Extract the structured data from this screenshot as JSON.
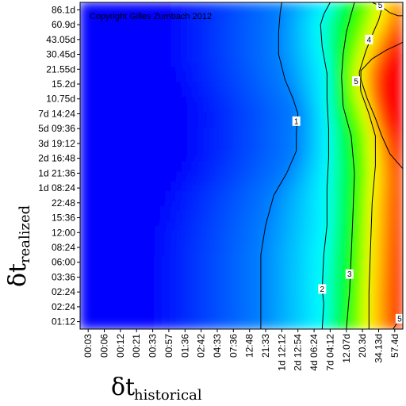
{
  "chart_data": {
    "type": "heatmap",
    "title": "",
    "copyright": "Copyright Gilles Zumbach 2012",
    "xlabel": {
      "symbol": "δt",
      "subscript": "historical"
    },
    "ylabel": {
      "symbol": "δt",
      "subscript": "realized"
    },
    "x_categories": [
      "00:03",
      "00:06",
      "00:12",
      "00:21",
      "00:33",
      "00:57",
      "01:36",
      "02:42",
      "04:33",
      "07:36",
      "12:48",
      "21:33",
      "1d 12:12",
      "2d 12:54",
      "4d 06:24",
      "7d 04:12",
      "12.07d",
      "20.3d",
      "34.13d",
      "57.4d"
    ],
    "y_categories": [
      "01:12",
      "02:24",
      "02:24",
      "03:36",
      "06:00",
      "08:24",
      "12:00",
      "15:36",
      "22:48",
      "1d 08:24",
      "1d 21:36",
      "2d 16:48",
      "3d 19:12",
      "5d 09:36",
      "7d 14:24",
      "10.75d",
      "15.2d",
      "21.55d",
      "30.45d",
      "43.05d",
      "60.9d",
      "86.1d"
    ],
    "contour_levels": [
      1,
      2,
      3,
      4,
      5
    ],
    "colorscale": [
      "#0000ff",
      "#0080ff",
      "#00ffff",
      "#00ff00",
      "#ffff00",
      "#ff8000",
      "#ff0000"
    ],
    "value_range": [
      0,
      6
    ],
    "contours": [
      {
        "level": 1,
        "label": "1",
        "label_at": [
          12.9,
          13.5
        ],
        "points": [
          [
            10.7,
            -0.5
          ],
          [
            10.7,
            4.5
          ],
          [
            11.0,
            6.5
          ],
          [
            11.5,
            8.5
          ],
          [
            12.3,
            10.0
          ],
          [
            12.9,
            11.5
          ],
          [
            12.9,
            12.8
          ],
          [
            13.0,
            14.0
          ],
          [
            12.7,
            15.0
          ],
          [
            12.2,
            16.3
          ],
          [
            11.8,
            18.0
          ],
          [
            11.8,
            19.5
          ],
          [
            11.9,
            20.8
          ],
          [
            12.0,
            21.5
          ]
        ]
      },
      {
        "level": 2,
        "label": "2",
        "label_at": [
          14.5,
          2.2
        ],
        "points": [
          [
            14.5,
            -0.5
          ],
          [
            14.6,
            1.2
          ],
          [
            14.5,
            2.2
          ],
          [
            14.6,
            4.5
          ],
          [
            14.8,
            6.5
          ],
          [
            14.8,
            9.0
          ],
          [
            14.9,
            11.0
          ],
          [
            14.9,
            13.0
          ],
          [
            14.8,
            15.0
          ],
          [
            14.8,
            16.7
          ],
          [
            14.5,
            18.5
          ],
          [
            14.4,
            20.0
          ],
          [
            14.6,
            20.7
          ],
          [
            15.0,
            21.5
          ]
        ]
      },
      {
        "level": 3,
        "label": "3",
        "label_at": [
          16.2,
          3.2
        ],
        "points": [
          [
            16.0,
            -0.5
          ],
          [
            16.2,
            2.0
          ],
          [
            16.3,
            4.5
          ],
          [
            16.4,
            7.0
          ],
          [
            16.5,
            10.0
          ],
          [
            16.3,
            12.5
          ],
          [
            15.8,
            14.5
          ],
          [
            15.7,
            16.5
          ],
          [
            15.8,
            18.0
          ],
          [
            16.0,
            19.5
          ],
          [
            16.3,
            20.7
          ],
          [
            16.5,
            21.5
          ]
        ]
      },
      {
        "level": 4,
        "label": "4",
        "label_at": [
          17.4,
          19.0
        ],
        "points": [
          [
            17.4,
            -0.5
          ],
          [
            17.4,
            2.0
          ],
          [
            17.5,
            5.0
          ],
          [
            17.6,
            8.0
          ],
          [
            17.8,
            10.5
          ],
          [
            17.8,
            12.5
          ],
          [
            17.4,
            14.0
          ],
          [
            16.9,
            15.5
          ],
          [
            16.8,
            16.8
          ],
          [
            17.2,
            18.2
          ],
          [
            17.6,
            19.3
          ],
          [
            18.0,
            20.3
          ],
          [
            18.3,
            21.5
          ]
        ]
      },
      {
        "level": 5,
        "label": "5",
        "label_at": [
          19.3,
          0.2
        ],
        "points": [
          [
            18.9,
            -0.5
          ],
          [
            19.3,
            0.2
          ],
          [
            19.8,
            0.8
          ]
        ]
      },
      {
        "level": 5,
        "label": "5",
        "label_at": [
          16.6,
          16.2
        ],
        "points": [
          [
            19.5,
            10.3
          ],
          [
            18.7,
            11.3
          ],
          [
            18.2,
            12.5
          ],
          [
            17.8,
            13.7
          ],
          [
            17.3,
            15.0
          ],
          [
            16.9,
            16.3
          ],
          [
            16.9,
            16.9
          ],
          [
            17.6,
            17.7
          ],
          [
            18.5,
            18.3
          ],
          [
            19.3,
            18.7
          ],
          [
            19.8,
            19.0
          ]
        ]
      },
      {
        "level": 5,
        "label": "5",
        "label_at": [
          18.1,
          21.3
        ],
        "points": [
          [
            17.6,
            21.5
          ],
          [
            18.2,
            21.2
          ],
          [
            18.7,
            20.8
          ],
          [
            19.2,
            20.6
          ],
          [
            19.6,
            20.6
          ],
          [
            19.8,
            20.4
          ]
        ]
      }
    ]
  }
}
